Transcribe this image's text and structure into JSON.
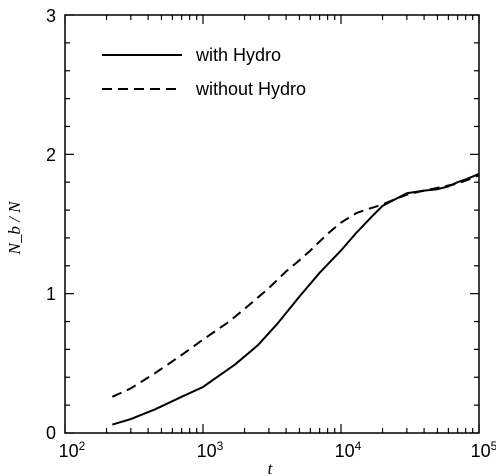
{
  "chart_data": {
    "type": "line",
    "xscale": "log",
    "xlim": [
      100,
      100000
    ],
    "ylim": [
      0,
      3
    ],
    "xlabel": "t",
    "ylabel": "N_b / N",
    "xticks": [
      {
        "base": "10",
        "exp": "2"
      },
      {
        "base": "10",
        "exp": "3"
      },
      {
        "base": "10",
        "exp": "4"
      },
      {
        "base": "10",
        "exp": "5"
      }
    ],
    "yticks": [
      "0",
      "1",
      "2",
      "3"
    ],
    "legend_position": "top-left",
    "series": [
      {
        "name": "with Hydro",
        "style": "solid",
        "x": [
          220,
          300,
          450,
          700,
          1000,
          1300,
          1700,
          2500,
          3500,
          5000,
          7000,
          10000,
          13000,
          17000,
          20000,
          25000,
          30000,
          40000,
          50000,
          60000,
          70000,
          80000,
          90000,
          100000
        ],
        "y": [
          0.06,
          0.1,
          0.17,
          0.26,
          0.33,
          0.41,
          0.49,
          0.63,
          0.79,
          0.98,
          1.15,
          1.31,
          1.44,
          1.56,
          1.63,
          1.68,
          1.72,
          1.74,
          1.75,
          1.77,
          1.8,
          1.82,
          1.84,
          1.86
        ]
      },
      {
        "name": "without Hydro",
        "style": "dashed",
        "x": [
          220,
          300,
          450,
          700,
          1000,
          1500,
          2000,
          3000,
          4000,
          5000,
          6000,
          8000,
          10000,
          13000,
          16000,
          20000,
          25000,
          30000,
          40000,
          50000,
          70000,
          90000,
          100000
        ],
        "y": [
          0.26,
          0.32,
          0.43,
          0.56,
          0.67,
          0.79,
          0.89,
          1.04,
          1.16,
          1.24,
          1.31,
          1.43,
          1.51,
          1.58,
          1.61,
          1.64,
          1.68,
          1.71,
          1.74,
          1.76,
          1.79,
          1.83,
          1.85
        ]
      }
    ]
  }
}
